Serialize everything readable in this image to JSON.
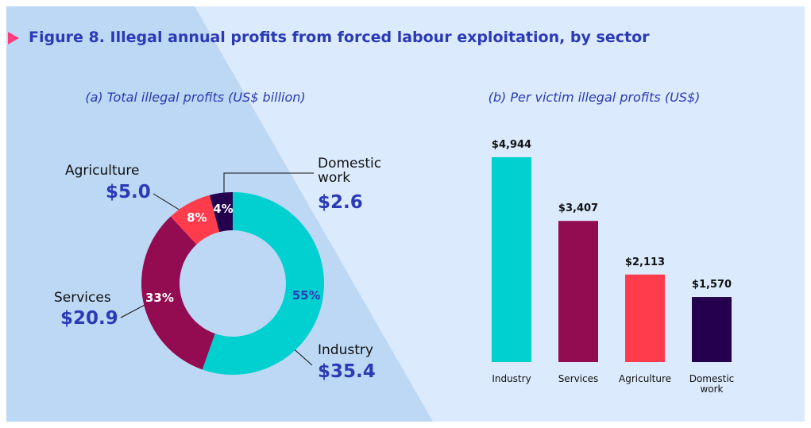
{
  "title": "Figure 8. Illegal annual profits from forced labour exploitation, by sector",
  "chart_data": [
    {
      "type": "donut",
      "subtitle": "(a) Total illegal profits (US$ billion)",
      "categories": [
        "Industry",
        "Services",
        "Agriculture",
        "Domestic work"
      ],
      "values": [
        35.4,
        20.9,
        5.0,
        2.6
      ],
      "value_labels": [
        "$35.4",
        "$20.9",
        "$5.0",
        "$2.6"
      ],
      "segment_labels": [
        "55%",
        "33%",
        "8%",
        "4%"
      ],
      "colors": [
        "#00d0d0",
        "#930b50",
        "#ff3c4c",
        "#24004f"
      ]
    },
    {
      "type": "bar",
      "subtitle": "(b) Per victim illegal profits (US$)",
      "categories": [
        "Industry",
        "Services",
        "Agriculture",
        "Domestic work"
      ],
      "values": [
        4944,
        3407,
        2113,
        1570
      ],
      "value_labels": [
        "$4,944",
        "$3,407",
        "$2,113",
        "$1,570"
      ],
      "colors": [
        "#00d0d0",
        "#930b50",
        "#ff3c4c",
        "#24004f"
      ]
    }
  ]
}
